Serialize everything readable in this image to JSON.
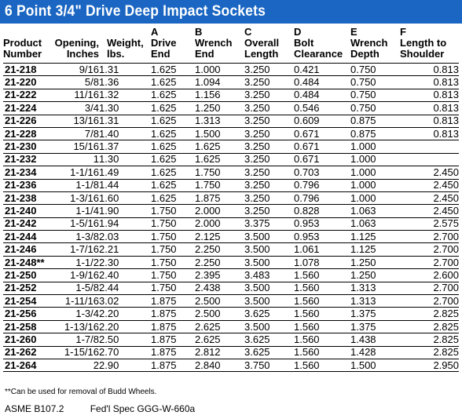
{
  "title": "6 Point 3/4\" Drive Deep Impact Sockets",
  "headers": {
    "product": [
      "Product",
      "Number"
    ],
    "opening": [
      "Opening,",
      "Inches"
    ],
    "weight": [
      "Weight,",
      "lbs."
    ],
    "a": [
      "A",
      "Drive",
      "End"
    ],
    "b": [
      "B",
      "Wrench",
      "End"
    ],
    "c": [
      "C",
      "Overall",
      "Length"
    ],
    "d": [
      "D",
      "Bolt",
      "Clearance"
    ],
    "e": [
      "E",
      "Wrench",
      "Depth"
    ],
    "f": [
      "F",
      "Length to",
      "Shoulder"
    ]
  },
  "rows": [
    [
      "21-218",
      "9/16",
      "1.31",
      "1.625",
      "1.000",
      "3.250",
      "0.421",
      "0.750",
      "0.813"
    ],
    [
      "21-220",
      "5/8",
      "1.36",
      "1.625",
      "1.094",
      "3.250",
      "0.484",
      "0.750",
      "0.813"
    ],
    [
      "21-222",
      "11/16",
      "1.32",
      "1.625",
      "1.156",
      "3.250",
      "0.484",
      "0.750",
      "0.813"
    ],
    [
      "21-224",
      "3/4",
      "1.30",
      "1.625",
      "1.250",
      "3.250",
      "0.546",
      "0.750",
      "0.813"
    ],
    [
      "21-226",
      "13/16",
      "1.31",
      "1.625",
      "1.313",
      "3.250",
      "0.609",
      "0.875",
      "0.813"
    ],
    [
      "21-228",
      "7/8",
      "1.40",
      "1.625",
      "1.500",
      "3.250",
      "0.671",
      "0.875",
      "0.813"
    ],
    [
      "21-230",
      "15/16",
      "1.37",
      "1.625",
      "1.625",
      "3.250",
      "0.671",
      "1.000",
      ""
    ],
    [
      "21-232",
      "1",
      "1.30",
      "1.625",
      "1.625",
      "3.250",
      "0.671",
      "1.000",
      ""
    ],
    [
      "21-234",
      "1-1/16",
      "1.49",
      "1.625",
      "1.750",
      "3.250",
      "0.703",
      "1.000",
      "2.450"
    ],
    [
      "21-236",
      "1-1/8",
      "1.44",
      "1.625",
      "1.750",
      "3.250",
      "0.796",
      "1.000",
      "2.450"
    ],
    [
      "21-238",
      "1-3/16",
      "1.60",
      "1.625",
      "1.875",
      "3.250",
      "0.796",
      "1.000",
      "2.450"
    ],
    [
      "21-240",
      "1-1/4",
      "1.90",
      "1.750",
      "2.000",
      "3.250",
      "0.828",
      "1.063",
      "2.450"
    ],
    [
      "21-242",
      "1-5/16",
      "1.94",
      "1.750",
      "2.000",
      "3.375",
      "0.953",
      "1.063",
      "2.575"
    ],
    [
      "21-244",
      "1-3/8",
      "2.03",
      "1.750",
      "2.125",
      "3.500",
      "0.953",
      "1.125",
      "2.700"
    ],
    [
      "21-246",
      "1-7/16",
      "2.21",
      "1.750",
      "2.250",
      "3.500",
      "1.061",
      "1.125",
      "2.700"
    ],
    [
      "21-248**",
      "1-1/2",
      "2.30",
      "1.750",
      "2.250",
      "3.500",
      "1.078",
      "1.250",
      "2.700"
    ],
    [
      "21-250",
      "1-9/16",
      "2.40",
      "1.750",
      "2.395",
      "3.483",
      "1.560",
      "1.250",
      "2.600"
    ],
    [
      "21-252",
      "1-5/8",
      "2.44",
      "1.750",
      "2.438",
      "3.500",
      "1.560",
      "1.313",
      "2.700"
    ],
    [
      "21-254",
      "1-11/16",
      "3.02",
      "1.875",
      "2.500",
      "3.500",
      "1.560",
      "1.313",
      "2.700"
    ],
    [
      "21-256",
      "1-3/4",
      "2.20",
      "1.875",
      "2.500",
      "3.625",
      "1.560",
      "1.375",
      "2.825"
    ],
    [
      "21-258",
      "1-13/16",
      "2.20",
      "1.875",
      "2.625",
      "3.500",
      "1.560",
      "1.375",
      "2.825"
    ],
    [
      "21-260",
      "1-7/8",
      "2.50",
      "1.875",
      "2.625",
      "3.625",
      "1.560",
      "1.438",
      "2.825"
    ],
    [
      "21-262",
      "1-15/16",
      "2.70",
      "1.875",
      "2.812",
      "3.625",
      "1.560",
      "1.428",
      "2.825"
    ],
    [
      "21-264",
      "2",
      "2.90",
      "1.875",
      "2.840",
      "3.750",
      "1.560",
      "1.500",
      "2.950"
    ]
  ],
  "footnote": "**Can be used for removal of Budd Wheels.",
  "standards": [
    "ASME B107.2",
    "Fed'l Spec GGG-W-660a"
  ],
  "colors": {
    "title_bar": "#1a66c2",
    "title_text": "#ffffff"
  }
}
